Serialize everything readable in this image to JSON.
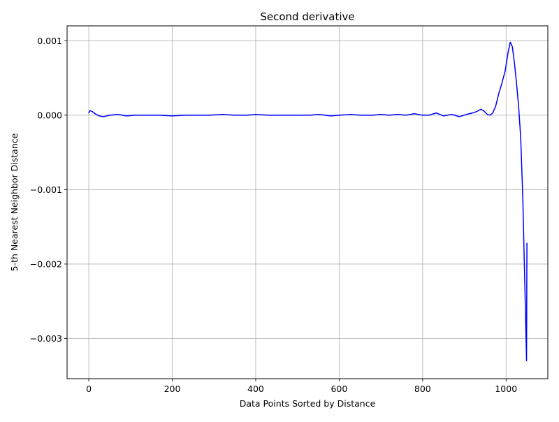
{
  "chart_data": {
    "type": "line",
    "title": "Second derivative",
    "xlabel": "Data Points Sorted by Distance",
    "ylabel": "5-th Nearest Neighbor Distance",
    "xlim": [
      -52,
      1100
    ],
    "ylim": [
      -0.00354,
      0.0012
    ],
    "grid": true,
    "legend": "none",
    "line_color": "#0000ff",
    "xticks": [
      0,
      200,
      400,
      600,
      800,
      1000
    ],
    "xtick_labels": [
      "0",
      "200",
      "400",
      "600",
      "800",
      "1000"
    ],
    "yticks": [
      0.001,
      0.0,
      -0.001,
      -0.002,
      -0.003
    ],
    "ytick_labels": [
      "0.001",
      "0.000",
      "−0.001",
      "−0.002",
      "−0.003"
    ],
    "series": [
      {
        "x": [
          0,
          3,
          8,
          15,
          25,
          35,
          50,
          70,
          90,
          110,
          140,
          170,
          200,
          230,
          260,
          290,
          320,
          350,
          380,
          400,
          430,
          460,
          500,
          530,
          550,
          580,
          600,
          630,
          650,
          680,
          700,
          720,
          740,
          760,
          780,
          800,
          815,
          833,
          850,
          870,
          888,
          905,
          920,
          930,
          940,
          948,
          955,
          962,
          968,
          975,
          982,
          990,
          998,
          1005,
          1010,
          1015,
          1020,
          1025,
          1030,
          1035,
          1040,
          1045,
          1049,
          1050
        ],
        "values": [
          3e-05,
          6e-05,
          5e-05,
          2e-05,
          -1e-05,
          -2e-05,
          0.0,
          1e-05,
          -1e-05,
          0.0,
          0.0,
          0.0,
          -1e-05,
          0.0,
          0.0,
          0.0,
          1e-05,
          0.0,
          0.0,
          1e-05,
          0.0,
          0.0,
          0.0,
          0.0,
          1e-05,
          -1e-05,
          0.0,
          1e-05,
          0.0,
          0.0,
          1e-05,
          0.0,
          1e-05,
          0.0,
          2e-05,
          0.0,
          0.0,
          3e-05,
          -1e-05,
          1e-05,
          -2e-05,
          1e-05,
          3e-05,
          5e-05,
          8e-05,
          5e-05,
          1e-05,
          0.0,
          3e-05,
          0.00012,
          0.00028,
          0.00043,
          0.0006,
          0.00085,
          0.00098,
          0.00092,
          0.0007,
          0.00043,
          0.00012,
          -0.0003,
          -0.0011,
          -0.0023,
          -0.0033,
          -0.00172
        ]
      }
    ]
  }
}
